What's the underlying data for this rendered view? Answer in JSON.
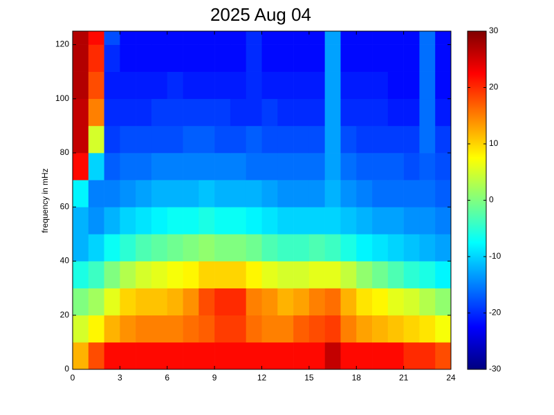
{
  "chart_data": {
    "type": "heatmap",
    "title": "2025 Aug 04",
    "ylabel": "frequency in mHz",
    "colormap": "jet",
    "x_bins": [
      0,
      1,
      2,
      3,
      4,
      5,
      6,
      7,
      8,
      9,
      10,
      11,
      12,
      13,
      14,
      15,
      16,
      17,
      18,
      19,
      20,
      21,
      22,
      23,
      24
    ],
    "y_bins": [
      0,
      10,
      20,
      30,
      40,
      50,
      60,
      70,
      80,
      90,
      100,
      110,
      120,
      125
    ],
    "values": [
      [
        12,
        18,
        22,
        22,
        22,
        22,
        22,
        22,
        22,
        22,
        22,
        22,
        22,
        22,
        22,
        22,
        26,
        22,
        22,
        22,
        22,
        20,
        20,
        18
      ],
      [
        5,
        8,
        12,
        14,
        15,
        15,
        15,
        16,
        17,
        19,
        19,
        16,
        15,
        15,
        17,
        18,
        19,
        15,
        13,
        12,
        11,
        10,
        9,
        7
      ],
      [
        0,
        2,
        6,
        10,
        11,
        11,
        12,
        14,
        18,
        20,
        20,
        15,
        14,
        12,
        13,
        15,
        16,
        12,
        9,
        8,
        6,
        5,
        3,
        1
      ],
      [
        -6,
        -4,
        0,
        3,
        5,
        6,
        7,
        8,
        10,
        10,
        10,
        8,
        6,
        5,
        5,
        6,
        6,
        4,
        1,
        -1,
        -3,
        -5,
        -6,
        -8
      ],
      [
        -12,
        -10,
        -7,
        -5,
        -3,
        -2,
        -1,
        0,
        1,
        0,
        0,
        -1,
        -3,
        -4,
        -4,
        -3,
        -4,
        -6,
        -8,
        -9,
        -10,
        -11,
        -12,
        -13
      ],
      [
        -12,
        -14,
        -12,
        -10,
        -9,
        -8,
        -7,
        -7,
        -6,
        -7,
        -7,
        -8,
        -9,
        -10,
        -10,
        -10,
        -10,
        -11,
        -12,
        -13,
        -13,
        -14,
        -14,
        -15
      ],
      [
        -8,
        -15,
        -15,
        -14,
        -13,
        -12,
        -12,
        -12,
        -11,
        -12,
        -12,
        -12,
        -13,
        -14,
        -14,
        -14,
        -12,
        -14,
        -15,
        -16,
        -16,
        -16,
        -16,
        -17
      ],
      [
        22,
        -10,
        -17,
        -16,
        -16,
        -15,
        -15,
        -15,
        -15,
        -15,
        -15,
        -16,
        -16,
        -16,
        -16,
        -16,
        -13,
        -16,
        -17,
        -17,
        -17,
        -18,
        -17,
        -18
      ],
      [
        26,
        5,
        -19,
        -18,
        -18,
        -18,
        -18,
        -17,
        -17,
        -18,
        -18,
        -17,
        -18,
        -18,
        -18,
        -18,
        -13,
        -18,
        -19,
        -19,
        -19,
        -19,
        -16,
        -19
      ],
      [
        26,
        15,
        -20,
        -20,
        -20,
        -19,
        -19,
        -19,
        -19,
        -19,
        -20,
        -20,
        -19,
        -20,
        -20,
        -20,
        -13,
        -20,
        -20,
        -20,
        -21,
        -21,
        -16,
        -21
      ],
      [
        27,
        18,
        -21,
        -21,
        -21,
        -21,
        -20,
        -21,
        -21,
        -21,
        -21,
        -20,
        -21,
        -21,
        -21,
        -21,
        -13,
        -21,
        -21,
        -21,
        -22,
        -22,
        -16,
        -22
      ],
      [
        27,
        20,
        -20,
        -22,
        -22,
        -22,
        -22,
        -22,
        -22,
        -22,
        -22,
        -20,
        -22,
        -22,
        -22,
        -22,
        -13,
        -22,
        -22,
        -22,
        -22,
        -22,
        -16,
        -22
      ],
      [
        27,
        22,
        -18,
        -22,
        -22,
        -22,
        -22,
        -22,
        -22,
        -22,
        -22,
        -20,
        -22,
        -22,
        -22,
        -22,
        -13,
        -22,
        -22,
        -22,
        -22,
        -22,
        -16,
        -22
      ]
    ],
    "xlim": [
      0,
      24
    ],
    "xticks": [
      0,
      3,
      6,
      9,
      12,
      15,
      18,
      21,
      24
    ],
    "ylim": [
      0,
      125
    ],
    "yticks": [
      0,
      20,
      40,
      60,
      80,
      100,
      120
    ],
    "clim": [
      -30,
      30
    ],
    "cticks": [
      -30,
      -20,
      -10,
      0,
      10,
      20,
      30
    ]
  }
}
